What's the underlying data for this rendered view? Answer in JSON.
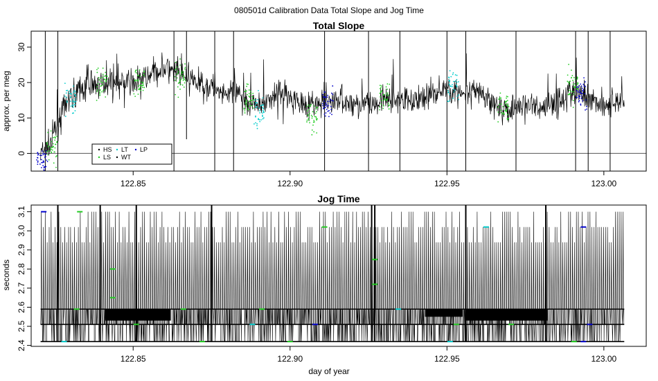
{
  "page": {
    "title": "080501d   Calibration Data Total Slope and Jog Time"
  },
  "chart_data": [
    {
      "type": "line",
      "title": "Total Slope",
      "xlabel": "",
      "ylabel": "approx. per meg",
      "xlim": [
        122.8175,
        123.0135
      ],
      "ylim": [
        -5,
        34.5
      ],
      "xticks": [
        122.85,
        122.9,
        122.95,
        123.0
      ],
      "xtick_labels": [
        "122.85",
        "122.90",
        "122.95",
        "123.00"
      ],
      "yticks": [
        0,
        10,
        20,
        30
      ],
      "ytick_labels": [
        "0",
        "10",
        "20",
        "30"
      ],
      "hline": 0,
      "grid": false,
      "legend_position": "bottom-left",
      "legend": [
        {
          "label": "HS",
          "color": "#000000"
        },
        {
          "label": "LS",
          "color": "#22cc22"
        },
        {
          "label": "LT",
          "color": "#00cccc"
        },
        {
          "label": "WT",
          "color": "#000000"
        },
        {
          "label": "LP",
          "color": "#0000cc"
        }
      ],
      "x_range": [
        122.8205,
        123.0065
      ],
      "trend": [
        {
          "x": 122.8205,
          "y": 0
        },
        {
          "x": 122.8235,
          "y": 2
        },
        {
          "x": 122.826,
          "y": 9
        },
        {
          "x": 122.83,
          "y": 16
        },
        {
          "x": 122.835,
          "y": 19
        },
        {
          "x": 122.84,
          "y": 20
        },
        {
          "x": 122.845,
          "y": 20
        },
        {
          "x": 122.85,
          "y": 20
        },
        {
          "x": 122.855,
          "y": 22
        },
        {
          "x": 122.86,
          "y": 24
        },
        {
          "x": 122.865,
          "y": 22
        },
        {
          "x": 122.87,
          "y": 20
        },
        {
          "x": 122.875,
          "y": 19
        },
        {
          "x": 122.88,
          "y": 17
        },
        {
          "x": 122.885,
          "y": 16
        },
        {
          "x": 122.89,
          "y": 13
        },
        {
          "x": 122.895,
          "y": 17
        },
        {
          "x": 122.9,
          "y": 16
        },
        {
          "x": 122.905,
          "y": 14
        },
        {
          "x": 122.91,
          "y": 14
        },
        {
          "x": 122.915,
          "y": 15
        },
        {
          "x": 122.92,
          "y": 14
        },
        {
          "x": 122.925,
          "y": 14
        },
        {
          "x": 122.93,
          "y": 15
        },
        {
          "x": 122.935,
          "y": 15
        },
        {
          "x": 122.94,
          "y": 15
        },
        {
          "x": 122.945,
          "y": 17
        },
        {
          "x": 122.95,
          "y": 18
        },
        {
          "x": 122.955,
          "y": 17
        },
        {
          "x": 122.96,
          "y": 17
        },
        {
          "x": 122.965,
          "y": 14
        },
        {
          "x": 122.97,
          "y": 12
        },
        {
          "x": 122.975,
          "y": 14
        },
        {
          "x": 122.98,
          "y": 13
        },
        {
          "x": 122.985,
          "y": 15
        },
        {
          "x": 122.99,
          "y": 17
        },
        {
          "x": 122.995,
          "y": 16
        },
        {
          "x": 123.0,
          "y": 14
        },
        {
          "x": 123.0065,
          "y": 15
        }
      ],
      "noise_amplitude": 4,
      "spikes": [
        {
          "x": 122.822,
          "y_low": -5,
          "y_high": 34.5
        },
        {
          "x": 122.826,
          "y_low": -5,
          "y_high": 34.5
        },
        {
          "x": 122.863,
          "y_low": -5,
          "y_high": 34.5
        },
        {
          "x": 122.867,
          "y_low": 4,
          "y_high": 34.5
        },
        {
          "x": 122.876,
          "y_low": -5,
          "y_high": 34.5
        },
        {
          "x": 122.882,
          "y_low": -5,
          "y_high": 34.5
        },
        {
          "x": 122.911,
          "y_low": -5,
          "y_high": 34.5
        },
        {
          "x": 122.925,
          "y_low": -5,
          "y_high": 34.5
        },
        {
          "x": 122.935,
          "y_low": -5,
          "y_high": 34.5
        },
        {
          "x": 122.95,
          "y_low": -5,
          "y_high": 34.5
        },
        {
          "x": 122.956,
          "y_low": -5,
          "y_high": 34.5
        },
        {
          "x": 122.972,
          "y_low": -5,
          "y_high": 34.5
        },
        {
          "x": 122.991,
          "y_low": -5,
          "y_high": 34.5
        },
        {
          "x": 122.995,
          "y_low": -5,
          "y_high": 34.5
        },
        {
          "x": 123.002,
          "y_low": -5,
          "y_high": 34.5
        }
      ],
      "colored_clusters": [
        {
          "x": 122.821,
          "color": "#0000cc",
          "y": -2
        },
        {
          "x": 122.824,
          "color": "#22cc22",
          "y": 2
        },
        {
          "x": 122.83,
          "color": "#00cccc",
          "y": 15
        },
        {
          "x": 122.84,
          "color": "#22cc22",
          "y": 20
        },
        {
          "x": 122.852,
          "color": "#22cc22",
          "y": 21
        },
        {
          "x": 122.865,
          "color": "#22cc22",
          "y": 22
        },
        {
          "x": 122.887,
          "color": "#22cc22",
          "y": 15
        },
        {
          "x": 122.89,
          "color": "#00cccc",
          "y": 12
        },
        {
          "x": 122.907,
          "color": "#22cc22",
          "y": 10
        },
        {
          "x": 122.912,
          "color": "#0000cc",
          "y": 14
        },
        {
          "x": 122.93,
          "color": "#22cc22",
          "y": 16
        },
        {
          "x": 122.952,
          "color": "#00cccc",
          "y": 19
        },
        {
          "x": 122.968,
          "color": "#22cc22",
          "y": 13
        },
        {
          "x": 122.99,
          "color": "#22cc22",
          "y": 19
        },
        {
          "x": 122.993,
          "color": "#0000cc",
          "y": 17
        }
      ]
    },
    {
      "type": "line",
      "title": "Jog Time",
      "xlabel": "day of year",
      "ylabel": "seconds",
      "xlim": [
        122.8175,
        123.0135
      ],
      "ylim": [
        2.395,
        3.135
      ],
      "xticks": [
        122.85,
        122.9,
        122.95,
        123.0
      ],
      "xtick_labels": [
        "122.85",
        "122.90",
        "122.95",
        "123.00"
      ],
      "yticks": [
        2.4,
        2.5,
        2.6,
        2.7,
        2.8,
        2.9,
        3.0,
        3.1
      ],
      "ytick_labels": [
        "2.4",
        "2.5",
        "2.6",
        "2.7",
        "2.8",
        "2.9",
        "3.0",
        "3.1"
      ],
      "grid": false,
      "x_range": [
        122.8205,
        123.0065
      ],
      "levels": [
        2.42,
        2.51,
        2.59
      ],
      "peak_levels": [
        2.94,
        3.02,
        3.1
      ],
      "dense_blocks": [
        {
          "x0": 122.841,
          "x1": 122.862,
          "y0": 2.53,
          "y1": 2.59
        },
        {
          "x0": 122.943,
          "x1": 122.955,
          "y0": 2.55,
          "y1": 2.59
        },
        {
          "x0": 122.956,
          "x1": 122.982,
          "y0": 2.53,
          "y1": 2.59
        }
      ],
      "spikes": [
        {
          "x": 122.826,
          "y_low": 2.42,
          "y_high": 3.135
        },
        {
          "x": 122.8395,
          "y_low": 2.42,
          "y_high": 3.135
        },
        {
          "x": 122.851,
          "y_low": 2.42,
          "y_high": 3.135
        },
        {
          "x": 122.875,
          "y_low": 2.42,
          "y_high": 3.135
        },
        {
          "x": 122.926,
          "y_low": 2.42,
          "y_high": 3.135
        },
        {
          "x": 122.927,
          "y_low": 2.42,
          "y_high": 3.135
        },
        {
          "x": 122.956,
          "y_low": 2.42,
          "y_high": 3.135
        },
        {
          "x": 122.9815,
          "y_low": 2.42,
          "y_high": 3.135
        }
      ],
      "colored_marks": [
        {
          "x": 122.8215,
          "y": 3.1,
          "color": "#0000cc"
        },
        {
          "x": 122.828,
          "y": 2.42,
          "color": "#00cccc"
        },
        {
          "x": 122.832,
          "y": 2.59,
          "color": "#22cc22"
        },
        {
          "x": 122.833,
          "y": 3.1,
          "color": "#22cc22"
        },
        {
          "x": 122.8435,
          "y": 2.8,
          "color": "#22cc22"
        },
        {
          "x": 122.8435,
          "y": 2.65,
          "color": "#22cc22"
        },
        {
          "x": 122.851,
          "y": 2.51,
          "color": "#22cc22"
        },
        {
          "x": 122.866,
          "y": 2.59,
          "color": "#22cc22"
        },
        {
          "x": 122.872,
          "y": 2.42,
          "color": "#22cc22"
        },
        {
          "x": 122.888,
          "y": 2.51,
          "color": "#00cccc"
        },
        {
          "x": 122.891,
          "y": 2.59,
          "color": "#22cc22"
        },
        {
          "x": 122.9,
          "y": 2.42,
          "color": "#22cc22"
        },
        {
          "x": 122.908,
          "y": 2.51,
          "color": "#0000cc"
        },
        {
          "x": 122.911,
          "y": 3.02,
          "color": "#22cc22"
        },
        {
          "x": 122.927,
          "y": 2.72,
          "color": "#22cc22"
        },
        {
          "x": 122.927,
          "y": 2.85,
          "color": "#22cc22"
        },
        {
          "x": 122.9345,
          "y": 2.59,
          "color": "#00cccc"
        },
        {
          "x": 122.951,
          "y": 2.42,
          "color": "#00cccc"
        },
        {
          "x": 122.953,
          "y": 2.51,
          "color": "#22cc22"
        },
        {
          "x": 122.9625,
          "y": 3.02,
          "color": "#00cccc"
        },
        {
          "x": 122.9705,
          "y": 2.51,
          "color": "#22cc22"
        },
        {
          "x": 122.9905,
          "y": 2.42,
          "color": "#22cc22"
        },
        {
          "x": 122.9935,
          "y": 2.42,
          "color": "#0000cc"
        },
        {
          "x": 122.9935,
          "y": 3.02,
          "color": "#0000cc"
        },
        {
          "x": 122.9955,
          "y": 2.51,
          "color": "#0000cc"
        }
      ]
    }
  ]
}
